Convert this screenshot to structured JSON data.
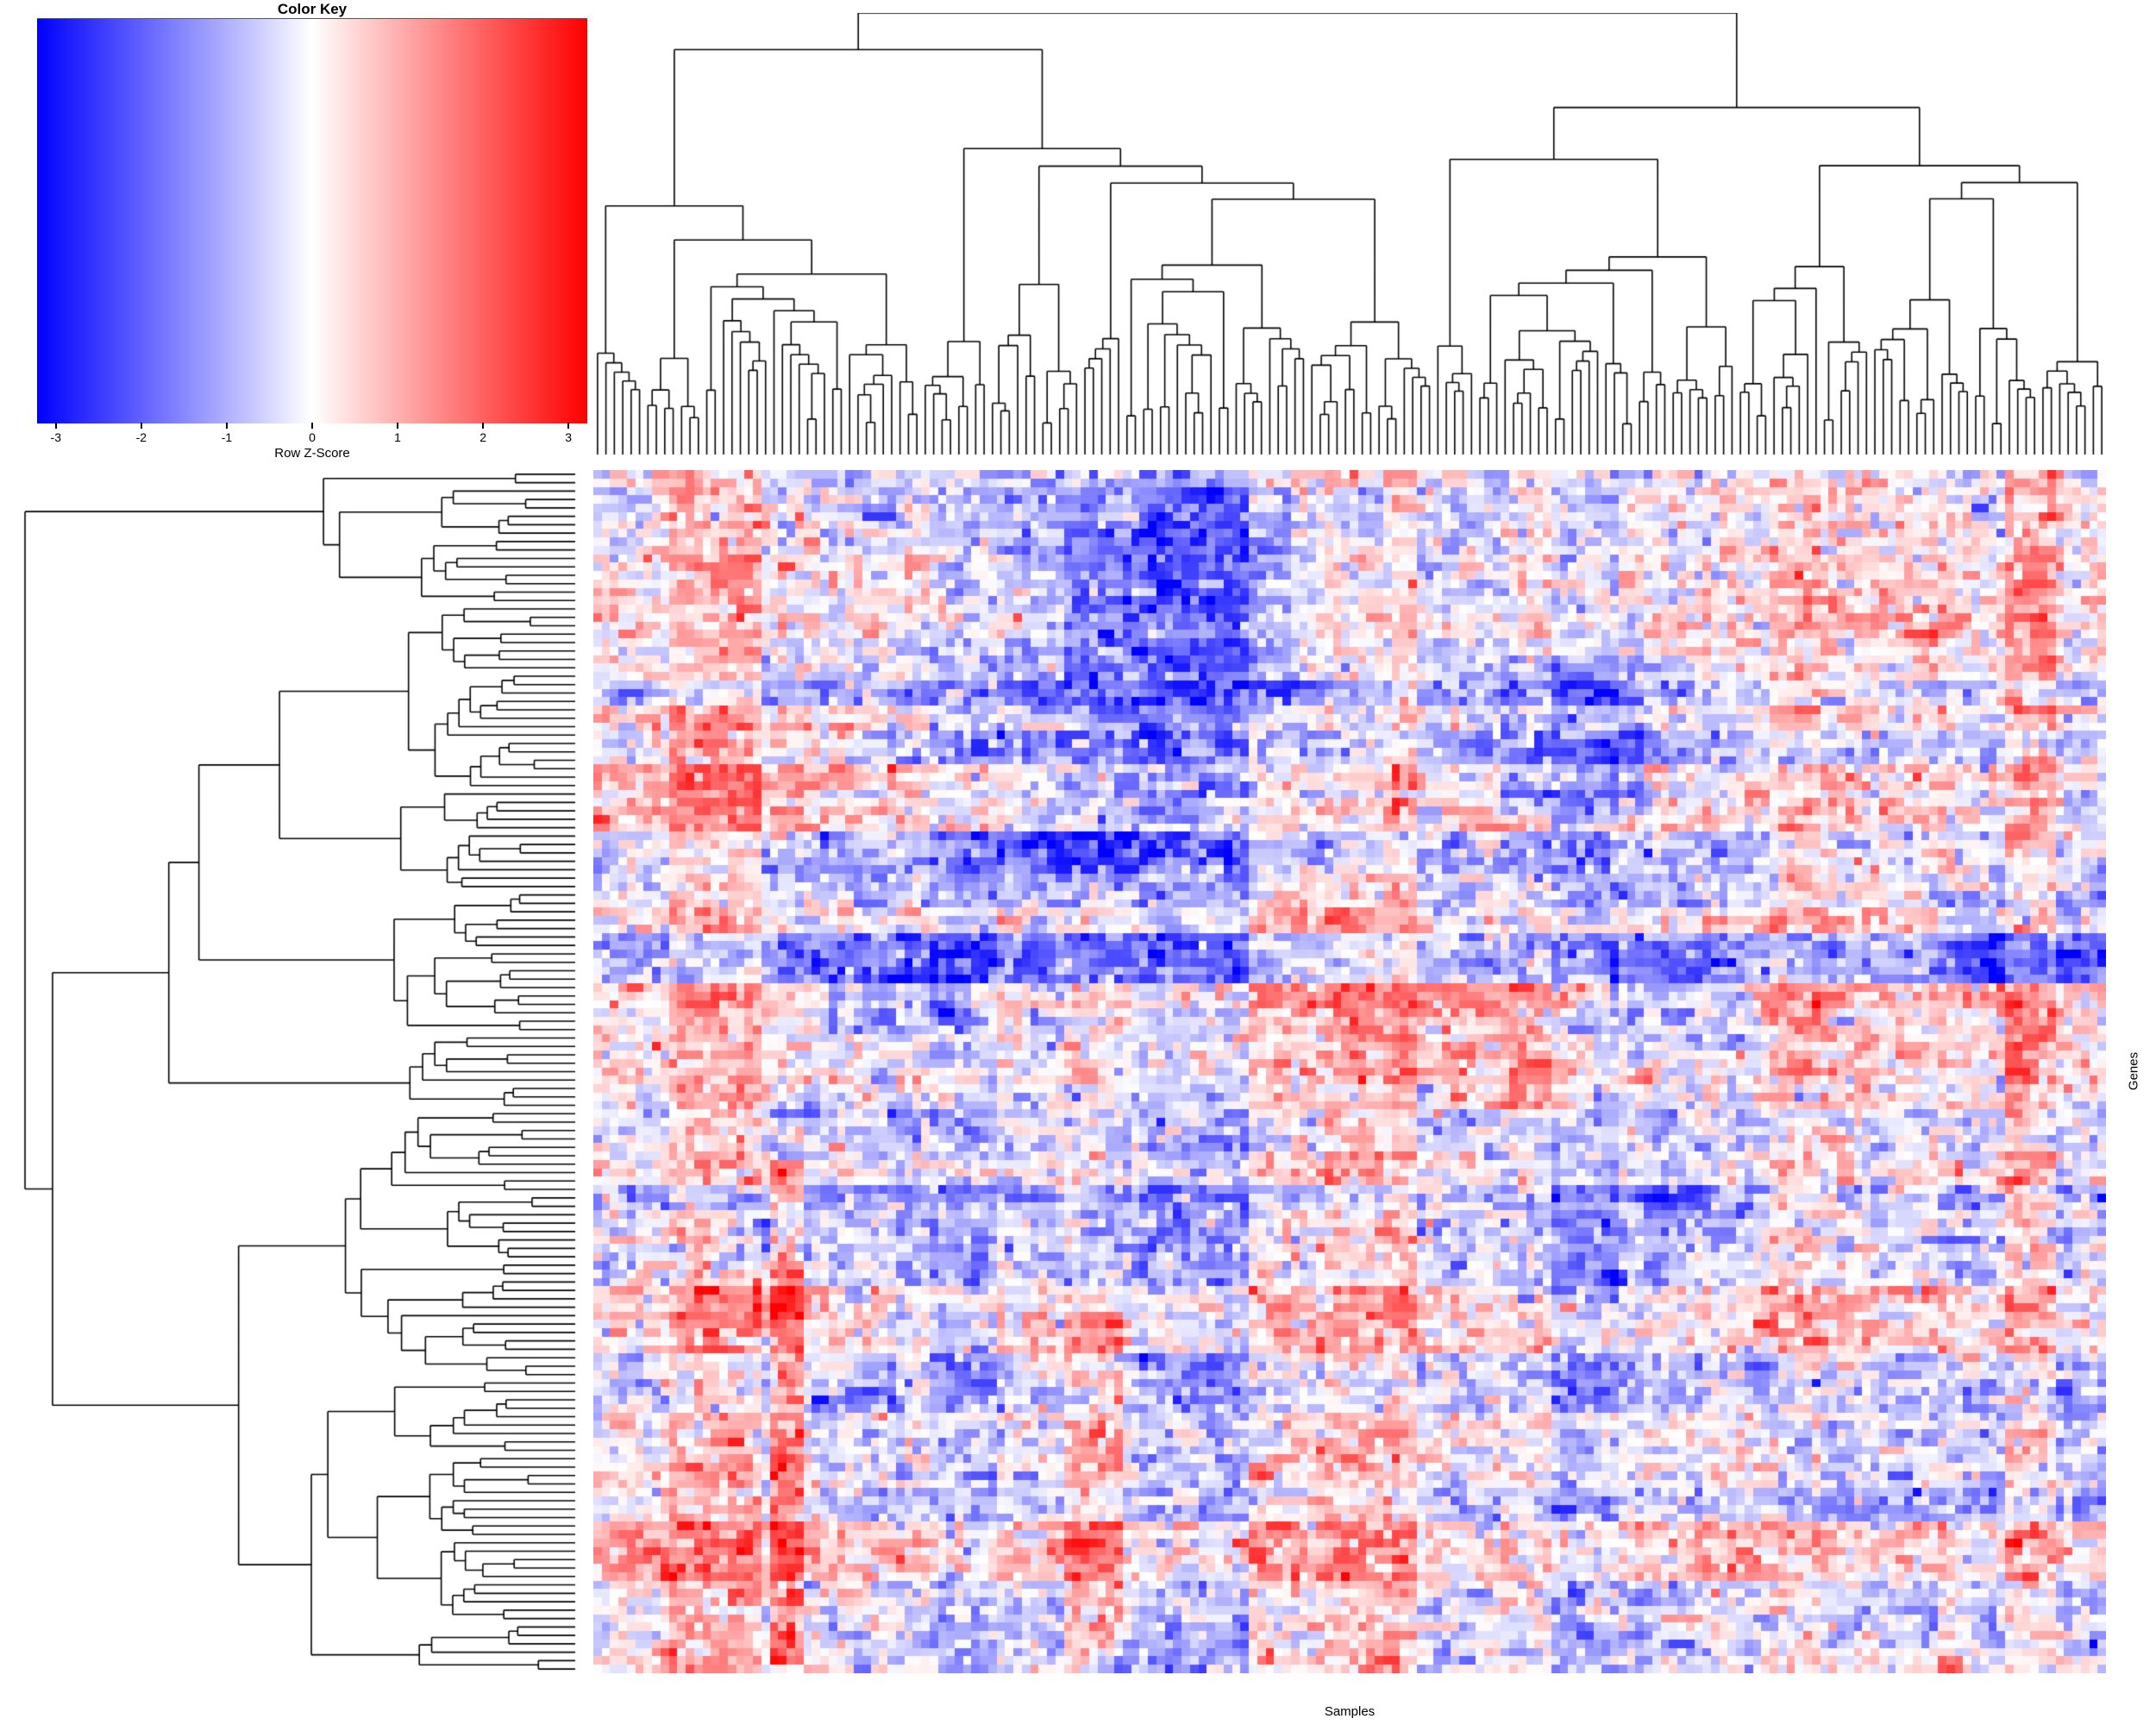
{
  "chart_data": {
    "type": "heatmap",
    "xlabel": "Samples",
    "ylabel": "Genes",
    "n_rows": 143,
    "n_cols": 180,
    "cluster_rows": true,
    "cluster_cols": true,
    "value_label": "Row Z-Score",
    "value_range": [
      -3.2,
      3.2
    ],
    "colorscale": {
      "min_color": "#0000FF",
      "mid_color": "#FFFFFF",
      "max_color": "#FF0000"
    },
    "color_key": {
      "title": "Color Key",
      "axis_label": "Row Z-Score",
      "tick_values": [
        -3,
        -2,
        -1,
        0,
        1,
        2,
        3
      ],
      "tick_labels": [
        "-3",
        "-2",
        "-1",
        "0",
        "1",
        "2",
        "3"
      ],
      "axis_min": -3.22,
      "axis_max": 3.22
    },
    "dendrogram_color": "#000000",
    "generation": {
      "values_seed": 101,
      "col_dendro_seed": 13,
      "row_dendro_seed": 7,
      "row_block_mean_len": 6,
      "row_block_sd": 0.5,
      "col_block_mean_len": 8,
      "col_block_sd": 0.45,
      "noise_sd": 0.85,
      "run_reuse_prob": 0.3,
      "vertical_smooth": 0.2,
      "n_random_patches": 24,
      "random_patch_max_delta": 1.0,
      "patches": [
        {
          "rows": [
            0,
            46
          ],
          "cols": [
            0,
            50
          ],
          "delta": 0.4
        },
        {
          "rows": [
            2,
            46
          ],
          "cols": [
            48,
            94
          ],
          "delta": -0.7
        },
        {
          "rows": [
            6,
            24
          ],
          "cols": [
            56,
            82
          ],
          "delta": -0.5
        },
        {
          "rows": [
            0,
            28
          ],
          "cols": [
            110,
            179
          ],
          "delta": 0.5
        },
        {
          "rows": [
            30,
            38
          ],
          "cols": [
            6,
            30
          ],
          "delta": 0.55
        },
        {
          "rows": [
            39,
            42
          ],
          "cols": [
            0,
            172
          ],
          "delta": 0.85
        },
        {
          "rows": [
            43,
            47
          ],
          "cols": [
            0,
            120
          ],
          "delta": -0.55
        },
        {
          "rows": [
            55,
            75
          ],
          "cols": [
            95,
            118
          ],
          "delta": 0.45
        },
        {
          "rows": [
            60,
            66
          ],
          "cols": [
            28,
            44
          ],
          "delta": -1.15
        },
        {
          "rows": [
            76,
            86
          ],
          "cols": [
            0,
            179
          ],
          "delta": -0.35
        },
        {
          "rows": [
            82,
            141
          ],
          "cols": [
            21,
            24
          ],
          "delta": 1.7
        },
        {
          "rows": [
            88,
            100
          ],
          "cols": [
            0,
            35
          ],
          "delta": 0.55
        },
        {
          "rows": [
            100,
            140
          ],
          "cols": [
            56,
            62
          ],
          "delta": 1.15
        },
        {
          "rows": [
            108,
            139
          ],
          "cols": [
            140,
            179
          ],
          "delta": -0.5
        },
        {
          "rows": [
            118,
            142
          ],
          "cols": [
            0,
            40
          ],
          "delta": 0.35
        }
      ]
    }
  }
}
